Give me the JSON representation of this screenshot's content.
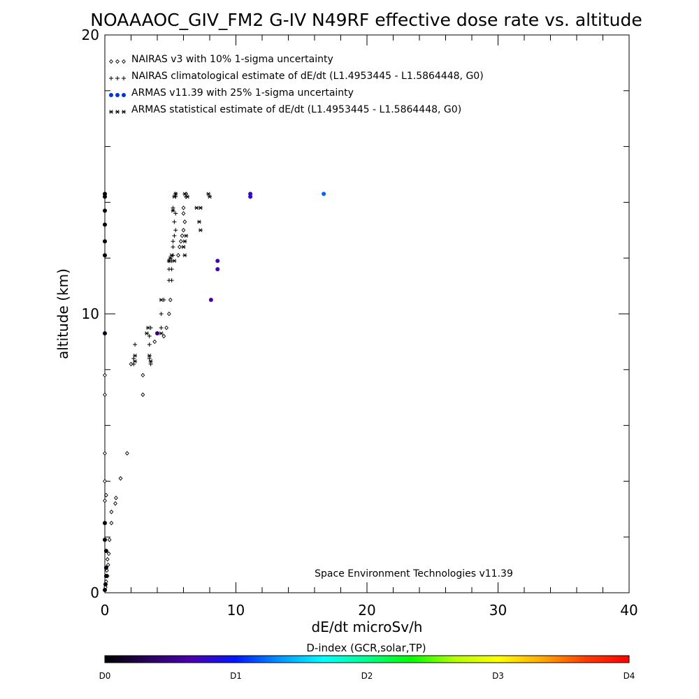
{
  "chart_data": {
    "type": "scatter",
    "title": "NOAAAOC_GIV_FM2 G-IV   N49RF  effective dose rate vs. altitude",
    "xlabel": "dE/dt microSv/h",
    "ylabel": "altitude (km)",
    "xlim": [
      0,
      40
    ],
    "ylim": [
      0,
      20
    ],
    "x_ticks": [
      "0",
      "10",
      "20",
      "30",
      "40"
    ],
    "y_ticks": [
      "0",
      "10",
      "20"
    ],
    "grid": false,
    "legend_position": "top-left",
    "credit": "Space Environment Technologies v11.39",
    "legend": [
      {
        "marker_text": "◇◇◇",
        "label": "NAIRAS v3 with 10% 1-sigma uncertainty"
      },
      {
        "marker_text": "+++",
        "label": "NAIRAS climatological estimate of dE/dt (L1.4953445 - L1.5864448, G0)"
      },
      {
        "marker_text": "●●●",
        "label": "ARMAS v11.39 with 25% 1-sigma uncertainty"
      },
      {
        "marker_text": "***",
        "label": "ARMAS statistical estimate of dE/dt (L1.4953445 - L1.5864448, G0)"
      }
    ],
    "series": [
      {
        "name": "NAIRAS v3 with 10% 1-sigma uncertainty",
        "marker": "diamond",
        "color": "#000000",
        "points": [
          [
            0.05,
            0.2
          ],
          [
            0.1,
            0.4
          ],
          [
            0.2,
            0.6
          ],
          [
            0.15,
            0.8
          ],
          [
            0.25,
            1.0
          ],
          [
            0.2,
            1.2
          ],
          [
            0.3,
            1.4
          ],
          [
            0.35,
            1.9
          ],
          [
            0.5,
            2.5
          ],
          [
            0.5,
            2.9
          ],
          [
            0.8,
            3.2
          ],
          [
            0.85,
            3.4
          ],
          [
            0.0,
            3.3
          ],
          [
            0.1,
            3.5
          ],
          [
            0.0,
            4.0
          ],
          [
            1.2,
            4.1
          ],
          [
            1.7,
            5.0
          ],
          [
            0.0,
            5.0
          ],
          [
            0.0,
            7.1
          ],
          [
            2.9,
            7.1
          ],
          [
            0.0,
            7.8
          ],
          [
            2.9,
            7.8
          ],
          [
            2.0,
            8.2
          ],
          [
            3.8,
            9.0
          ],
          [
            4.5,
            9.2
          ],
          [
            4.7,
            9.5
          ],
          [
            4.9,
            10.0
          ],
          [
            5.0,
            10.5
          ],
          [
            5.6,
            12.1
          ],
          [
            5.7,
            12.4
          ],
          [
            5.8,
            12.6
          ],
          [
            5.9,
            12.8
          ],
          [
            6.0,
            13.0
          ],
          [
            6.1,
            13.3
          ],
          [
            6.0,
            13.6
          ],
          [
            6.0,
            13.8
          ],
          [
            6.2,
            14.2
          ],
          [
            6.2,
            14.3
          ]
        ]
      },
      {
        "name": "NAIRAS climatological estimate of dE/dt (L1.4953445 - L1.5864448, G0)",
        "marker": "plus",
        "color": "#000000",
        "points": [
          [
            2.2,
            8.2
          ],
          [
            3.5,
            8.2
          ],
          [
            2.2,
            8.4
          ],
          [
            3.4,
            8.4
          ],
          [
            2.3,
            8.9
          ],
          [
            3.4,
            8.9
          ],
          [
            3.4,
            9.2
          ],
          [
            3.5,
            9.5
          ],
          [
            4.3,
            9.5
          ],
          [
            4.3,
            10.0
          ],
          [
            4.5,
            10.5
          ],
          [
            4.9,
            11.2
          ],
          [
            5.1,
            11.2
          ],
          [
            4.9,
            11.6
          ],
          [
            5.1,
            11.6
          ],
          [
            4.9,
            11.9
          ],
          [
            5.1,
            11.9
          ],
          [
            5.2,
            12.1
          ],
          [
            5.2,
            12.4
          ],
          [
            5.2,
            12.6
          ],
          [
            5.3,
            12.8
          ],
          [
            5.4,
            13.0
          ],
          [
            5.3,
            13.3
          ],
          [
            5.4,
            13.6
          ],
          [
            5.2,
            13.8
          ],
          [
            5.4,
            14.2
          ],
          [
            5.4,
            14.3
          ]
        ]
      },
      {
        "name": "ARMAS v11.39 with 25% 1-sigma uncertainty",
        "marker": "dot",
        "points": [
          {
            "x": 0.0,
            "y": 0.1,
            "d": 0.02
          },
          {
            "x": 0.05,
            "y": 0.3,
            "d": 0.05
          },
          {
            "x": 0.1,
            "y": 0.6,
            "d": 0.02
          },
          {
            "x": 0.1,
            "y": 0.9,
            "d": 0.05
          },
          {
            "x": 0.1,
            "y": 1.5,
            "d": 0.05
          },
          {
            "x": 0.0,
            "y": 1.9,
            "d": 0.02
          },
          {
            "x": 0.0,
            "y": 2.5,
            "d": 0.05
          },
          {
            "x": 0.0,
            "y": 9.3,
            "d": 0.05
          },
          {
            "x": 4.0,
            "y": 9.3,
            "d": 0.45
          },
          {
            "x": 0.0,
            "y": 12.1,
            "d": 0.05
          },
          {
            "x": 0.0,
            "y": 12.6,
            "d": 0.05
          },
          {
            "x": 0.0,
            "y": 13.2,
            "d": 0.05
          },
          {
            "x": 0.0,
            "y": 13.7,
            "d": 0.05
          },
          {
            "x": 0.0,
            "y": 14.2,
            "d": 0.05
          },
          {
            "x": 0.0,
            "y": 14.3,
            "d": 0.05
          },
          {
            "x": 8.1,
            "y": 10.5,
            "d": 0.65
          },
          {
            "x": 8.6,
            "y": 11.6,
            "d": 0.7
          },
          {
            "x": 8.6,
            "y": 11.9,
            "d": 0.7
          },
          {
            "x": 11.1,
            "y": 14.2,
            "d": 0.75
          },
          {
            "x": 11.1,
            "y": 14.3,
            "d": 0.8
          },
          {
            "x": 16.7,
            "y": 14.3,
            "d": 1.2
          }
        ]
      },
      {
        "name": "ARMAS statistical estimate of dE/dt (L1.4953445 - L1.5864448, G0)",
        "marker": "asterisk",
        "color": "#000000",
        "points": [
          [
            2.3,
            8.3
          ],
          [
            3.5,
            8.3
          ],
          [
            2.3,
            8.5
          ],
          [
            3.4,
            8.5
          ],
          [
            3.2,
            9.3
          ],
          [
            3.3,
            9.5
          ],
          [
            4.3,
            9.3
          ],
          [
            4.3,
            10.5
          ],
          [
            4.9,
            11.9
          ],
          [
            5.3,
            11.9
          ],
          [
            5.0,
            12.0
          ],
          [
            5.1,
            12.1
          ],
          [
            6.1,
            12.1
          ],
          [
            6.0,
            12.4
          ],
          [
            6.1,
            12.6
          ],
          [
            6.2,
            12.8
          ],
          [
            7.3,
            13.0
          ],
          [
            7.2,
            13.3
          ],
          [
            5.2,
            13.7
          ],
          [
            7.0,
            13.8
          ],
          [
            7.3,
            13.8
          ],
          [
            5.3,
            14.2
          ],
          [
            6.3,
            14.2
          ],
          [
            8.0,
            14.2
          ],
          [
            5.4,
            14.3
          ],
          [
            6.1,
            14.3
          ],
          [
            7.9,
            14.3
          ]
        ]
      }
    ]
  },
  "colorbar": {
    "title": "D-index (GCR,solar,TP)",
    "stops": [
      "#000000",
      "#2a0060",
      "#4b00b0",
      "#0018ff",
      "#0096ff",
      "#00ffff",
      "#00ff8c",
      "#00ff00",
      "#b4ff00",
      "#ffff00",
      "#ffaa00",
      "#ff3c00",
      "#ff0000"
    ],
    "tick_labels": [
      {
        "label": "D0",
        "value": 0
      },
      {
        "label": "D1",
        "value": 1
      },
      {
        "label": "D2",
        "value": 2
      },
      {
        "label": "D3",
        "value": 3
      },
      {
        "label": "D4",
        "value": 4
      }
    ]
  }
}
